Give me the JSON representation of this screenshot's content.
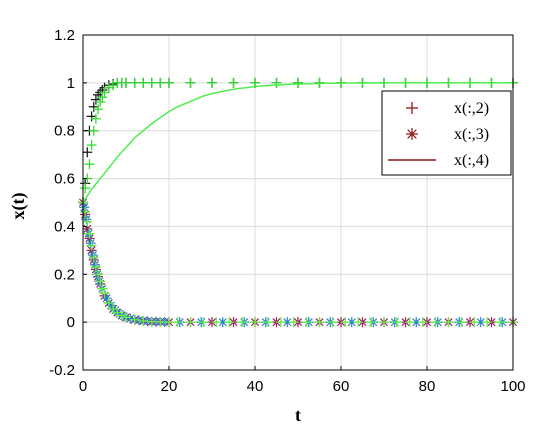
{
  "chart_data": {
    "type": "line",
    "title": "",
    "xlabel": "t",
    "ylabel": "x(t)",
    "xlim": [
      0,
      100
    ],
    "ylim": [
      -0.2,
      1.2
    ],
    "xticks": [
      0,
      20,
      40,
      60,
      80,
      100
    ],
    "yticks": [
      -0.2,
      0,
      0.2,
      0.4,
      0.6,
      0.8,
      1,
      1.2
    ],
    "xtick_labels": [
      "0",
      "20",
      "40",
      "60",
      "80",
      "100"
    ],
    "ytick_labels": [
      "-0.2",
      "0",
      "0.2",
      "0.4",
      "0.6",
      "0.8",
      "1",
      "1.2"
    ],
    "grid": true,
    "legend_position": "right",
    "legend": [
      {
        "label": "x(:,2)",
        "marker": "plus",
        "color": "#8b1a1a"
      },
      {
        "label": "x(:,3)",
        "marker": "asterisk",
        "color": "#8b1a1a"
      },
      {
        "label": "x(:,4)",
        "marker": "line",
        "color": "#8b1a1a"
      }
    ],
    "series": [
      {
        "name": "",
        "style": "plus",
        "color": "#1f1f1f",
        "x": [
          0,
          0.5,
          1,
          1.5,
          2,
          2.5,
          3,
          3.5,
          4,
          4.5,
          5,
          6,
          7,
          8,
          9,
          10,
          12,
          14,
          16,
          18,
          20,
          25,
          30,
          35,
          40,
          45,
          50,
          55,
          60,
          65,
          70,
          75,
          80,
          85,
          90,
          95,
          100
        ],
        "y": [
          0.5,
          0.58,
          0.71,
          0.8,
          0.86,
          0.9,
          0.93,
          0.95,
          0.96,
          0.97,
          0.98,
          0.99,
          0.995,
          1,
          1,
          1,
          1,
          1,
          1,
          1,
          1,
          1,
          1,
          1,
          1,
          1,
          1,
          1,
          1,
          1,
          1,
          1,
          1,
          1,
          1,
          1,
          1
        ]
      },
      {
        "name": "",
        "style": "plus",
        "color": "#33dd33",
        "x": [
          0,
          0.5,
          1,
          1.5,
          2,
          2.5,
          3,
          3.5,
          4,
          4.5,
          5,
          6,
          7,
          8,
          9,
          10,
          12,
          14,
          16,
          18,
          20,
          25,
          30,
          35,
          40,
          45,
          50,
          55,
          60,
          65,
          70,
          75,
          80,
          85,
          90,
          95,
          100
        ],
        "y": [
          0.5,
          0.56,
          0.6,
          0.66,
          0.74,
          0.8,
          0.85,
          0.89,
          0.92,
          0.94,
          0.96,
          0.98,
          0.99,
          1,
          1,
          1,
          1,
          1,
          1,
          1,
          1,
          1,
          1,
          1,
          1,
          1,
          1,
          1,
          1,
          1,
          1,
          1,
          1,
          1,
          1,
          1,
          1
        ]
      },
      {
        "name": "",
        "style": "asterisk",
        "color": "#9a1c5a",
        "x": [
          0,
          0.5,
          1,
          1.5,
          2,
          2.5,
          3,
          3.5,
          4,
          5,
          6,
          7,
          8,
          9,
          10,
          12,
          14,
          16,
          18,
          20,
          25,
          30,
          35,
          40,
          45,
          50,
          55,
          60,
          65,
          70,
          75,
          80,
          85,
          90,
          95,
          100
        ],
        "y": [
          0.5,
          0.45,
          0.39,
          0.35,
          0.3,
          0.26,
          0.22,
          0.19,
          0.16,
          0.11,
          0.08,
          0.055,
          0.04,
          0.028,
          0.02,
          0.01,
          0.005,
          0.002,
          0.001,
          0,
          0,
          0,
          0,
          0,
          0,
          0,
          0,
          0,
          0,
          0,
          0,
          0,
          0,
          0,
          0,
          0
        ]
      },
      {
        "name": "",
        "style": "asterisk",
        "color": "#2a7fd0",
        "x": [
          0.3,
          0.8,
          1.3,
          1.8,
          2.3,
          2.8,
          3.3,
          3.8,
          4.5,
          5.5,
          6.5,
          7.5,
          8.5,
          9.5,
          11,
          13,
          15,
          17,
          19,
          22.5,
          27.5,
          32.5,
          37.5,
          42.5,
          47.5,
          52.5,
          57.5,
          62.5,
          67.5,
          72.5,
          77.5,
          82.5,
          87.5,
          92.5,
          97.5
        ],
        "y": [
          0.48,
          0.43,
          0.37,
          0.33,
          0.28,
          0.24,
          0.2,
          0.17,
          0.14,
          0.1,
          0.07,
          0.05,
          0.035,
          0.024,
          0.015,
          0.008,
          0.004,
          0.002,
          0.001,
          0,
          0,
          0,
          0,
          0,
          0,
          0,
          0,
          0,
          0,
          0,
          0,
          0,
          0,
          0,
          0
        ]
      },
      {
        "name": "",
        "style": "plus",
        "color": "#66ee44",
        "x": [
          0,
          0.5,
          1,
          1.5,
          2,
          2.5,
          3,
          3.5,
          4,
          4.5,
          5,
          6,
          7,
          8,
          9,
          10,
          12,
          14,
          16,
          18,
          20,
          22,
          25,
          28,
          31,
          34,
          37,
          40,
          43,
          46,
          49,
          52,
          55,
          58,
          61,
          64,
          67,
          70,
          73,
          76,
          79,
          82,
          85,
          88,
          91,
          94,
          97,
          100
        ],
        "y": [
          0.5,
          0.46,
          0.42,
          0.37,
          0.32,
          0.27,
          0.23,
          0.2,
          0.17,
          0.14,
          0.12,
          0.08,
          0.055,
          0.04,
          0.028,
          0.02,
          0.01,
          0.005,
          0.002,
          0.001,
          0,
          0,
          0,
          0,
          0,
          0,
          0,
          0,
          0,
          0,
          0,
          0,
          0,
          0,
          0,
          0,
          0,
          0,
          0,
          0,
          0,
          0,
          0,
          0,
          0,
          0,
          0,
          0
        ]
      },
      {
        "name": "",
        "style": "line",
        "color": "#44ee44",
        "x": [
          0,
          2,
          4,
          6,
          8,
          10,
          12,
          14,
          16,
          18,
          20,
          22,
          24,
          26,
          28,
          30,
          32,
          34,
          36,
          38,
          40,
          44,
          48,
          52,
          56,
          60,
          70,
          80,
          90,
          100
        ],
        "y": [
          0.5,
          0.555,
          0.6,
          0.645,
          0.69,
          0.73,
          0.77,
          0.8,
          0.83,
          0.855,
          0.88,
          0.9,
          0.915,
          0.93,
          0.945,
          0.955,
          0.963,
          0.97,
          0.976,
          0.98,
          0.985,
          0.99,
          0.994,
          0.996,
          0.998,
          0.999,
          1,
          1,
          1,
          1
        ]
      }
    ]
  }
}
